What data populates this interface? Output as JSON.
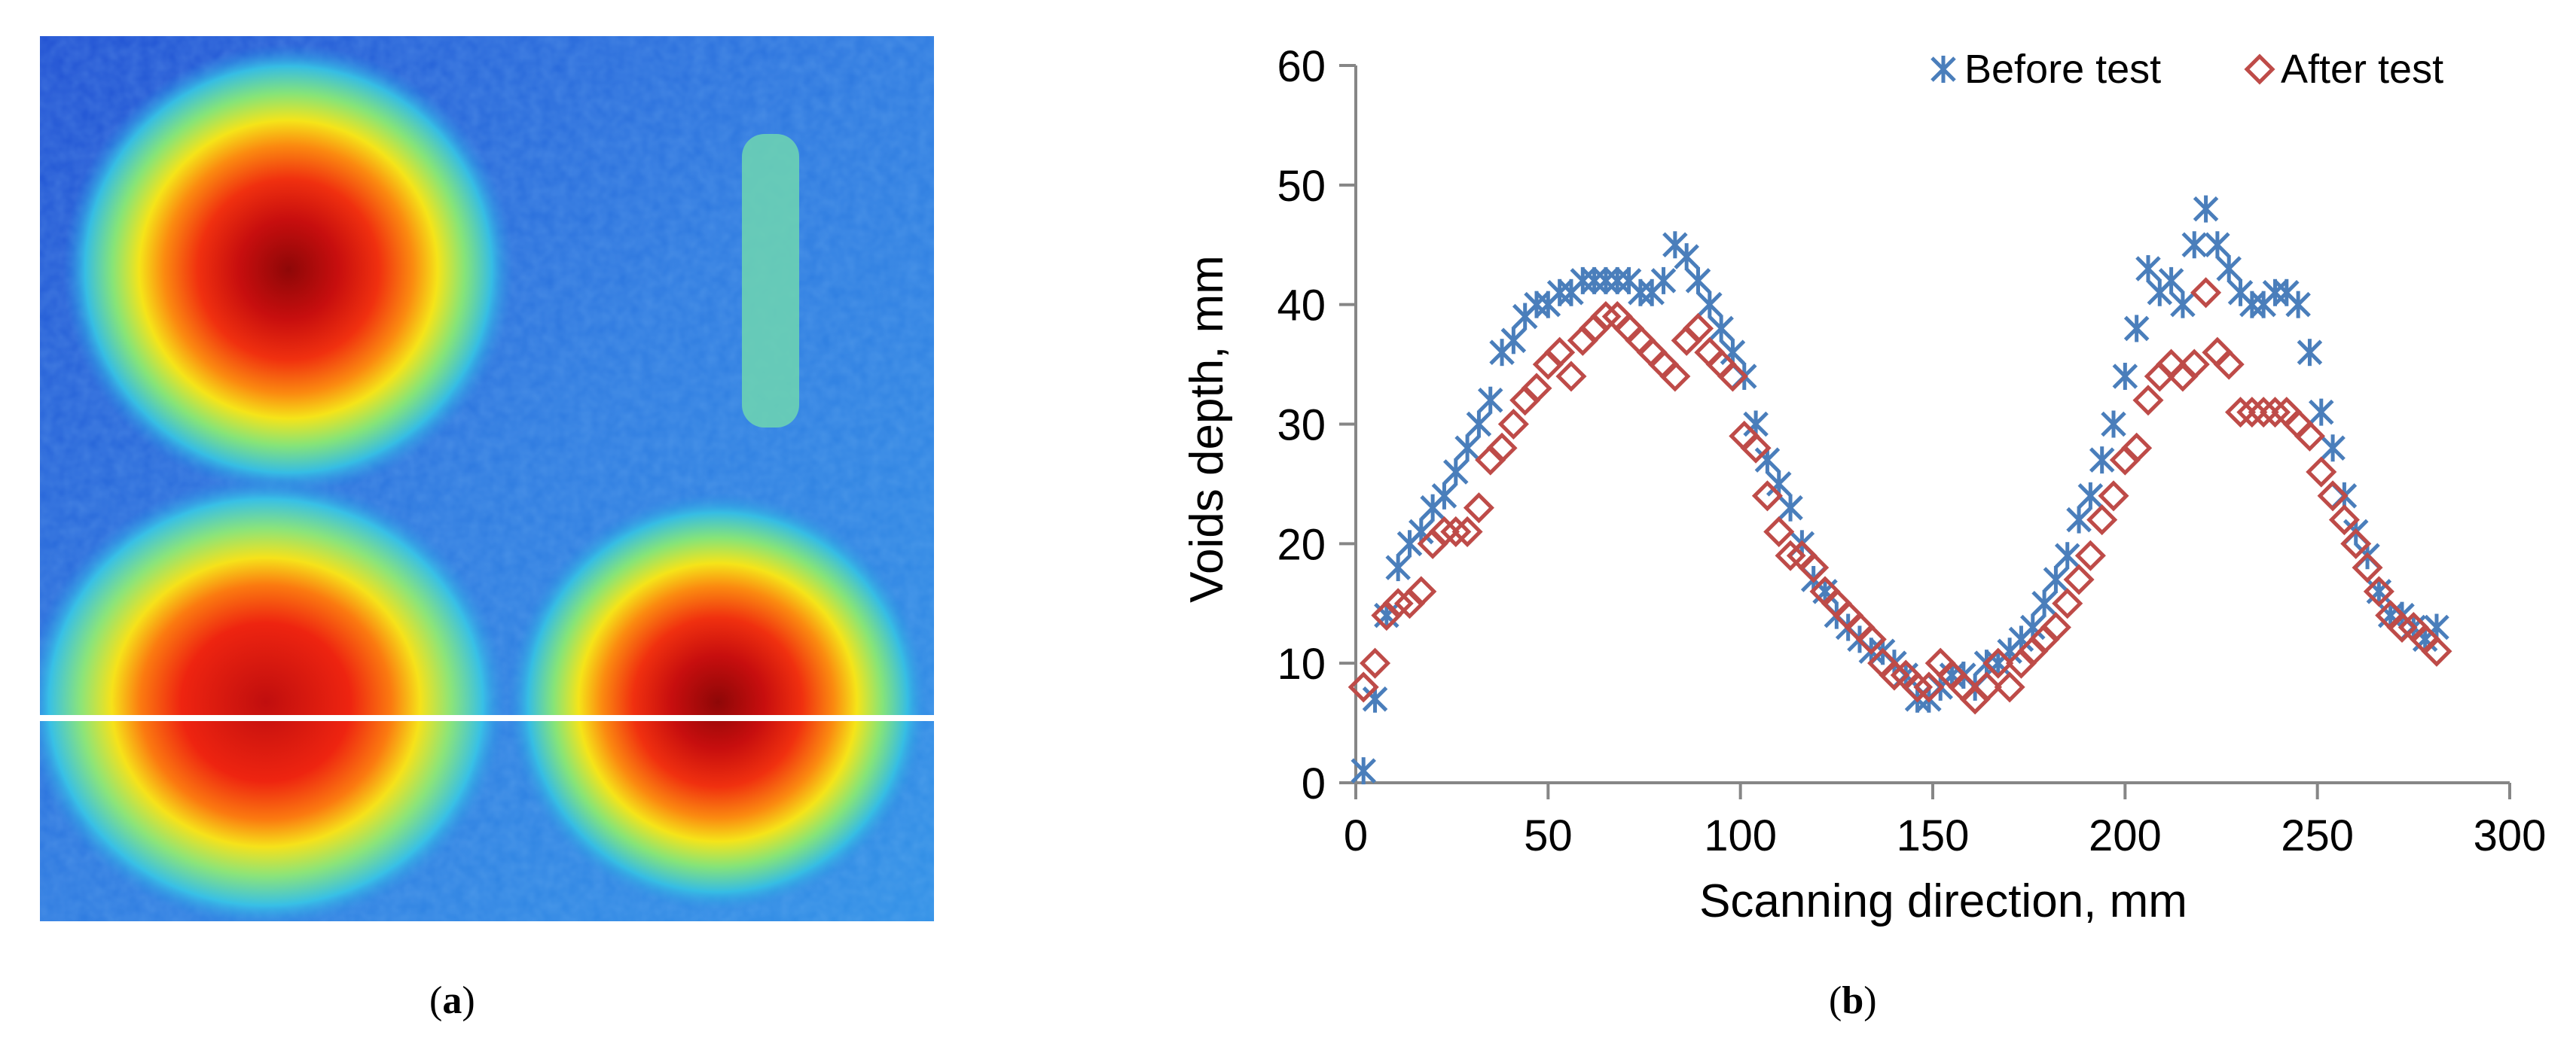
{
  "panel_a": {
    "image_description_label": "",
    "scan_line_color": "#ffffff",
    "colors": {
      "low": "#1e56d6",
      "mid": "#3fc4ea",
      "high": "#e8201a",
      "peak": "#9c0a0a"
    }
  },
  "captions": {
    "a": {
      "open": "(",
      "letter": "a",
      "close": ")"
    },
    "b": {
      "open": "(",
      "letter": "b",
      "close": ")"
    }
  },
  "chart_data": {
    "type": "scatter",
    "xlabel": "Scanning direction, mm",
    "ylabel": "Voids depth, mm",
    "xlim": [
      0,
      300
    ],
    "ylim": [
      0,
      60
    ],
    "xticks": [
      0,
      50,
      100,
      150,
      200,
      250,
      300
    ],
    "yticks": [
      0,
      10,
      20,
      30,
      40,
      50,
      60
    ],
    "grid": false,
    "legend_position": "top-right",
    "series": [
      {
        "name": "Before test",
        "marker": "asterisk",
        "color": "#4a7ebb",
        "x": [
          2,
          5,
          8,
          11,
          14,
          17,
          20,
          23,
          26,
          29,
          32,
          35,
          38,
          41,
          44,
          47,
          50,
          53,
          56,
          59,
          62,
          65,
          68,
          71,
          74,
          77,
          80,
          83,
          86,
          89,
          92,
          95,
          98,
          101,
          104,
          107,
          110,
          113,
          116,
          119,
          122,
          125,
          128,
          131,
          134,
          137,
          140,
          143,
          146,
          149,
          152,
          155,
          158,
          161,
          164,
          167,
          170,
          173,
          176,
          179,
          182,
          185,
          188,
          191,
          194,
          197,
          200,
          203,
          206,
          209,
          212,
          215,
          218,
          221,
          224,
          227,
          230,
          233,
          236,
          239,
          242,
          245,
          248,
          251,
          254,
          257,
          260,
          263,
          266,
          269,
          272,
          275,
          278,
          281
        ],
        "y": [
          1,
          7,
          14,
          18,
          20,
          21,
          23,
          24,
          26,
          28,
          30,
          32,
          36,
          37,
          39,
          40,
          40,
          41,
          41,
          42,
          42,
          42,
          42,
          42,
          41,
          41,
          42,
          45,
          44,
          42,
          40,
          38,
          36,
          34,
          30,
          27,
          25,
          23,
          20,
          17,
          16,
          14,
          13,
          12,
          11,
          11,
          10,
          9,
          7,
          7,
          8,
          9,
          9,
          8,
          10,
          10,
          11,
          12,
          13,
          15,
          17,
          19,
          22,
          24,
          27,
          30,
          34,
          38,
          43,
          41,
          42,
          40,
          45,
          48,
          45,
          43,
          41,
          40,
          40,
          41,
          41,
          40,
          36,
          31,
          28,
          24,
          21,
          19,
          16,
          14,
          14,
          13,
          12,
          13
        ]
      },
      {
        "name": "After test",
        "marker": "diamond",
        "color": "#be4b48",
        "x": [
          2,
          5,
          8,
          11,
          14,
          17,
          20,
          23,
          26,
          29,
          32,
          35,
          38,
          41,
          44,
          47,
          50,
          53,
          56,
          59,
          62,
          65,
          68,
          71,
          74,
          77,
          80,
          83,
          86,
          89,
          92,
          95,
          98,
          101,
          104,
          107,
          110,
          113,
          116,
          119,
          122,
          125,
          128,
          131,
          134,
          137,
          140,
          143,
          146,
          149,
          152,
          155,
          158,
          161,
          164,
          167,
          170,
          173,
          176,
          179,
          182,
          185,
          188,
          191,
          194,
          197,
          200,
          203,
          206,
          209,
          212,
          215,
          218,
          221,
          224,
          227,
          230,
          233,
          236,
          239,
          242,
          245,
          248,
          251,
          254,
          257,
          260,
          263,
          266,
          269,
          272,
          275,
          278,
          281
        ],
        "y": [
          8,
          10,
          14,
          15,
          15,
          16,
          20,
          21,
          21,
          21,
          23,
          27,
          28,
          30,
          32,
          33,
          35,
          36,
          34,
          37,
          38,
          39,
          39,
          38,
          37,
          36,
          35,
          34,
          37,
          38,
          36,
          35,
          34,
          29,
          28,
          24,
          21,
          19,
          19,
          18,
          16,
          15,
          14,
          13,
          12,
          10,
          9,
          9,
          8,
          8,
          10,
          9,
          8,
          7,
          8,
          10,
          8,
          10,
          11,
          12,
          13,
          15,
          17,
          19,
          22,
          24,
          27,
          28,
          32,
          34,
          35,
          34,
          35,
          41,
          36,
          35,
          31,
          31,
          31,
          31,
          31,
          30,
          29,
          26,
          24,
          22,
          20,
          18,
          16,
          14,
          13,
          13,
          12,
          11
        ]
      }
    ]
  }
}
